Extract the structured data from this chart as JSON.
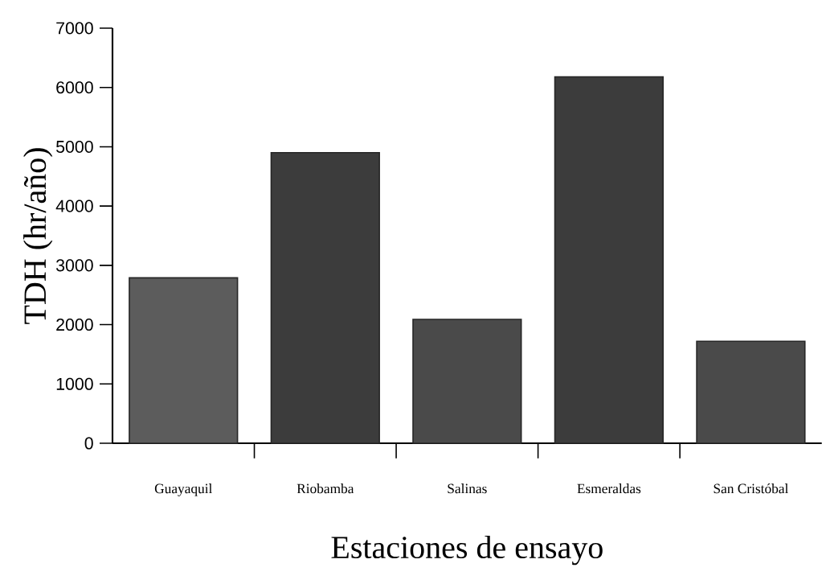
{
  "chart_data": {
    "type": "bar",
    "xlabel": "Estaciones de ensayo",
    "ylabel": "TDH (hr/año)",
    "categories": [
      "Guayaquil",
      "Riobamba",
      "Salinas",
      "Esmeraldas",
      "San Cristóbal"
    ],
    "values": [
      2790,
      4900,
      2090,
      6180,
      1720
    ],
    "colors": [
      "#5c5c5c",
      "#3c3c3c",
      "#4a4a4a",
      "#3c3c3c",
      "#4a4a4a"
    ],
    "ylim": [
      0,
      7000
    ],
    "yticks": [
      0,
      1000,
      2000,
      3000,
      4000,
      5000,
      6000,
      7000
    ]
  }
}
